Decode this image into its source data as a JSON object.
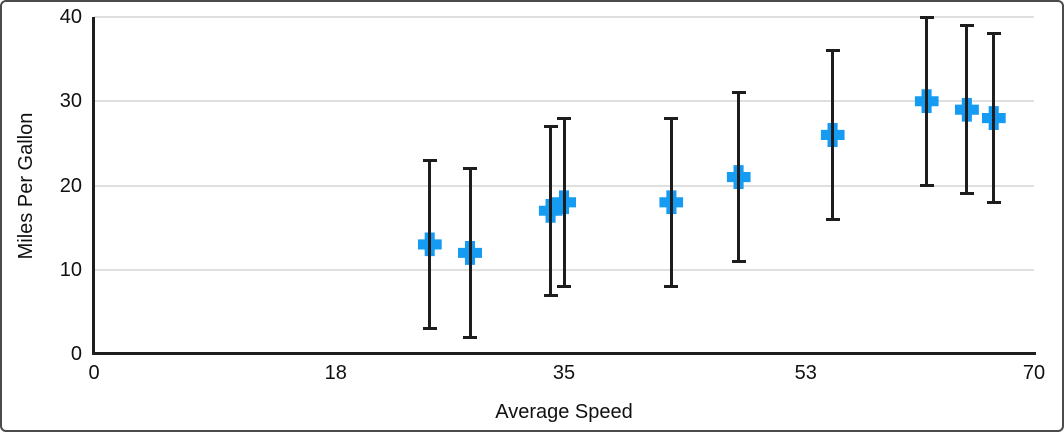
{
  "chart_data": {
    "type": "scatter",
    "xlabel": "Average Speed",
    "ylabel": "Miles Per Gallon",
    "xlim": [
      0,
      70
    ],
    "ylim": [
      0,
      40
    ],
    "x_ticks": [
      0,
      18,
      35,
      53,
      70
    ],
    "y_ticks": [
      0,
      10,
      20,
      30,
      40
    ],
    "grid": "horizontal-only",
    "legend": "none",
    "marker_shape": "plus",
    "marker_color": "#169BF3",
    "error_bar_color": "#1d1d1f",
    "points": [
      {
        "x": 25,
        "y": 13,
        "y_min": 3,
        "y_max": 23
      },
      {
        "x": 28,
        "y": 12,
        "y_min": 2,
        "y_max": 22
      },
      {
        "x": 34,
        "y": 17,
        "y_min": 7,
        "y_max": 27
      },
      {
        "x": 35,
        "y": 18,
        "y_min": 8,
        "y_max": 28
      },
      {
        "x": 43,
        "y": 18,
        "y_min": 8,
        "y_max": 28
      },
      {
        "x": 48,
        "y": 21,
        "y_min": 11,
        "y_max": 31
      },
      {
        "x": 55,
        "y": 26,
        "y_min": 16,
        "y_max": 36
      },
      {
        "x": 62,
        "y": 30,
        "y_min": 20,
        "y_max": 40
      },
      {
        "x": 65,
        "y": 29,
        "y_min": 19,
        "y_max": 39
      },
      {
        "x": 67,
        "y": 28,
        "y_min": 18,
        "y_max": 38
      }
    ]
  }
}
